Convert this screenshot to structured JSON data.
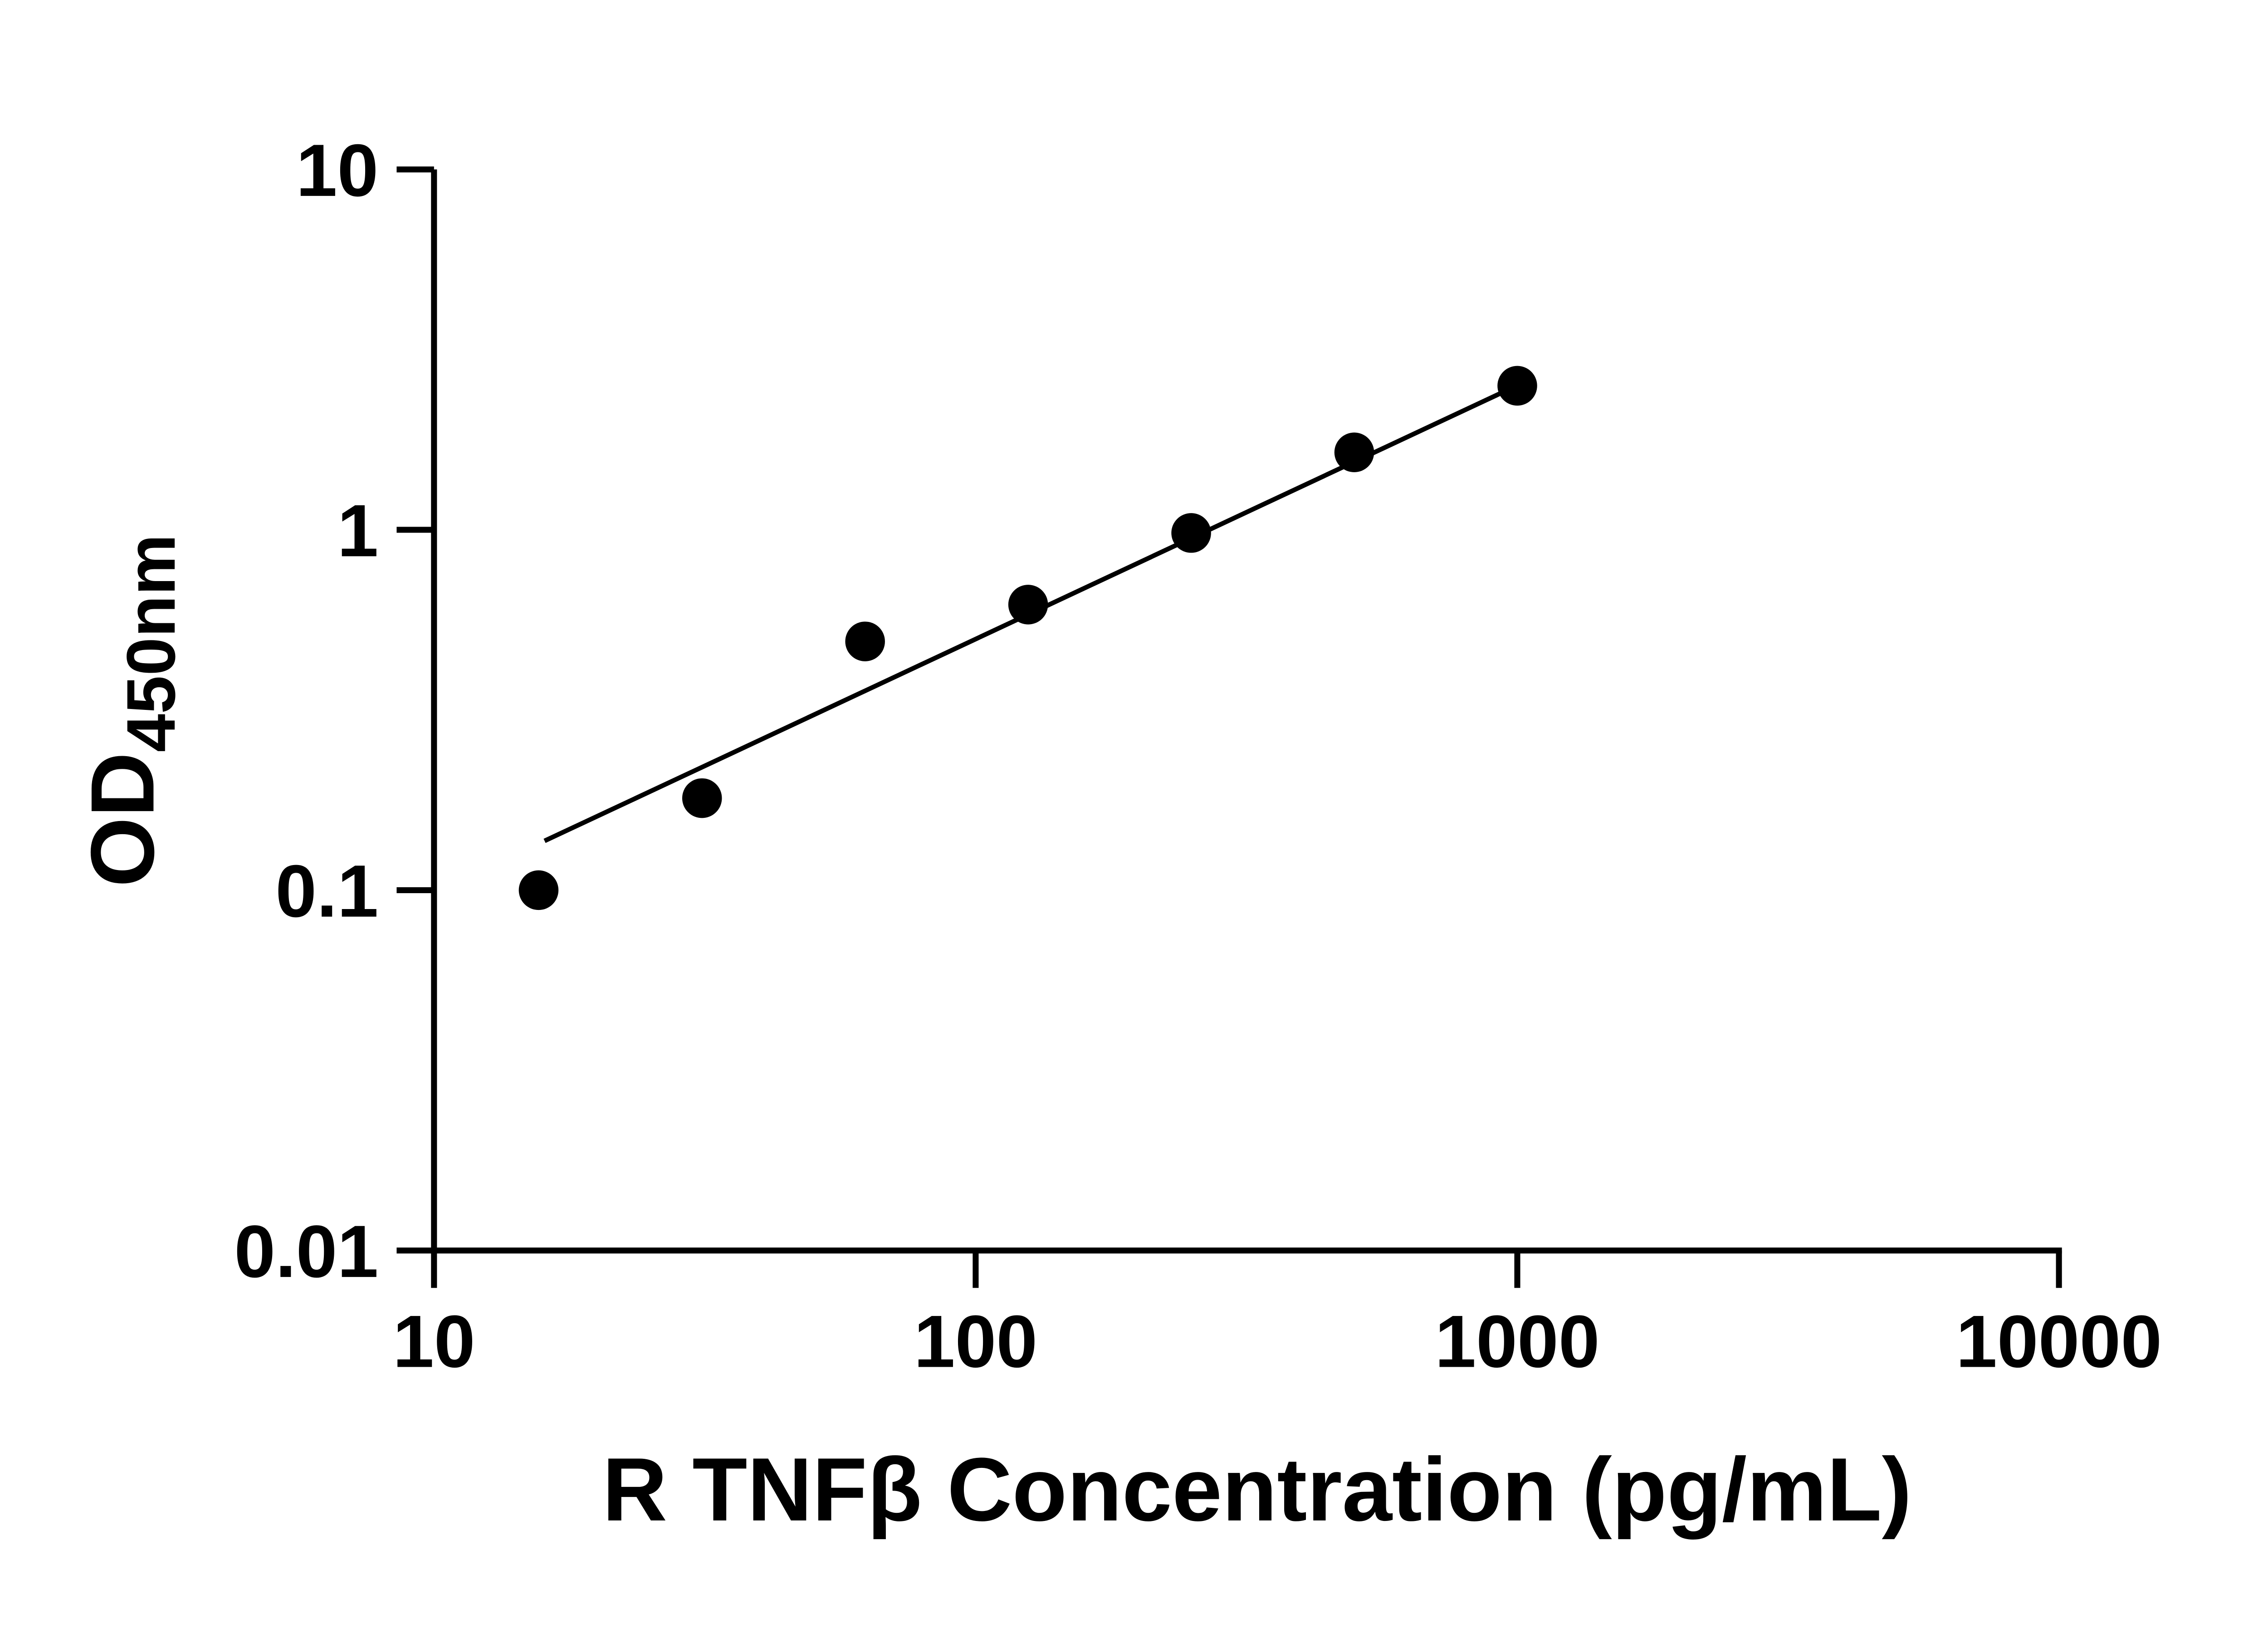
{
  "figure": {
    "background_color": "#ffffff",
    "ink_color": "#000000"
  },
  "chart_data": {
    "type": "scatter",
    "xlabel": "R TNFβ Concentration (pg/mL)",
    "ylabel_main": "OD",
    "ylabel_sub": "450nm",
    "x_scale": "log",
    "y_scale": "log",
    "xlim": [
      10,
      10000
    ],
    "ylim": [
      0.01,
      10
    ],
    "grid": false,
    "legend": false,
    "x_ticks": [
      {
        "value": 10,
        "label": "10"
      },
      {
        "value": 100,
        "label": "100"
      },
      {
        "value": 1000,
        "label": "1000"
      },
      {
        "value": 10000,
        "label": "10000"
      }
    ],
    "y_ticks": [
      {
        "value": 10,
        "label": "10"
      },
      {
        "value": 1,
        "label": "1"
      },
      {
        "value": 0.1,
        "label": "0.1"
      },
      {
        "value": 0.01,
        "label": "0.01"
      }
    ],
    "series": [
      {
        "name": "standard-points",
        "type": "scatter",
        "marker": "circle",
        "color": "#000000",
        "x": [
          15.6,
          31.25,
          62.5,
          125,
          250,
          500,
          1000
        ],
        "y": [
          0.1,
          0.18,
          0.49,
          0.62,
          0.98,
          1.64,
          2.51
        ]
      },
      {
        "name": "fit-line",
        "type": "line",
        "color": "#000000",
        "x": [
          16,
          1060
        ],
        "y": [
          0.137,
          2.62
        ]
      }
    ]
  }
}
